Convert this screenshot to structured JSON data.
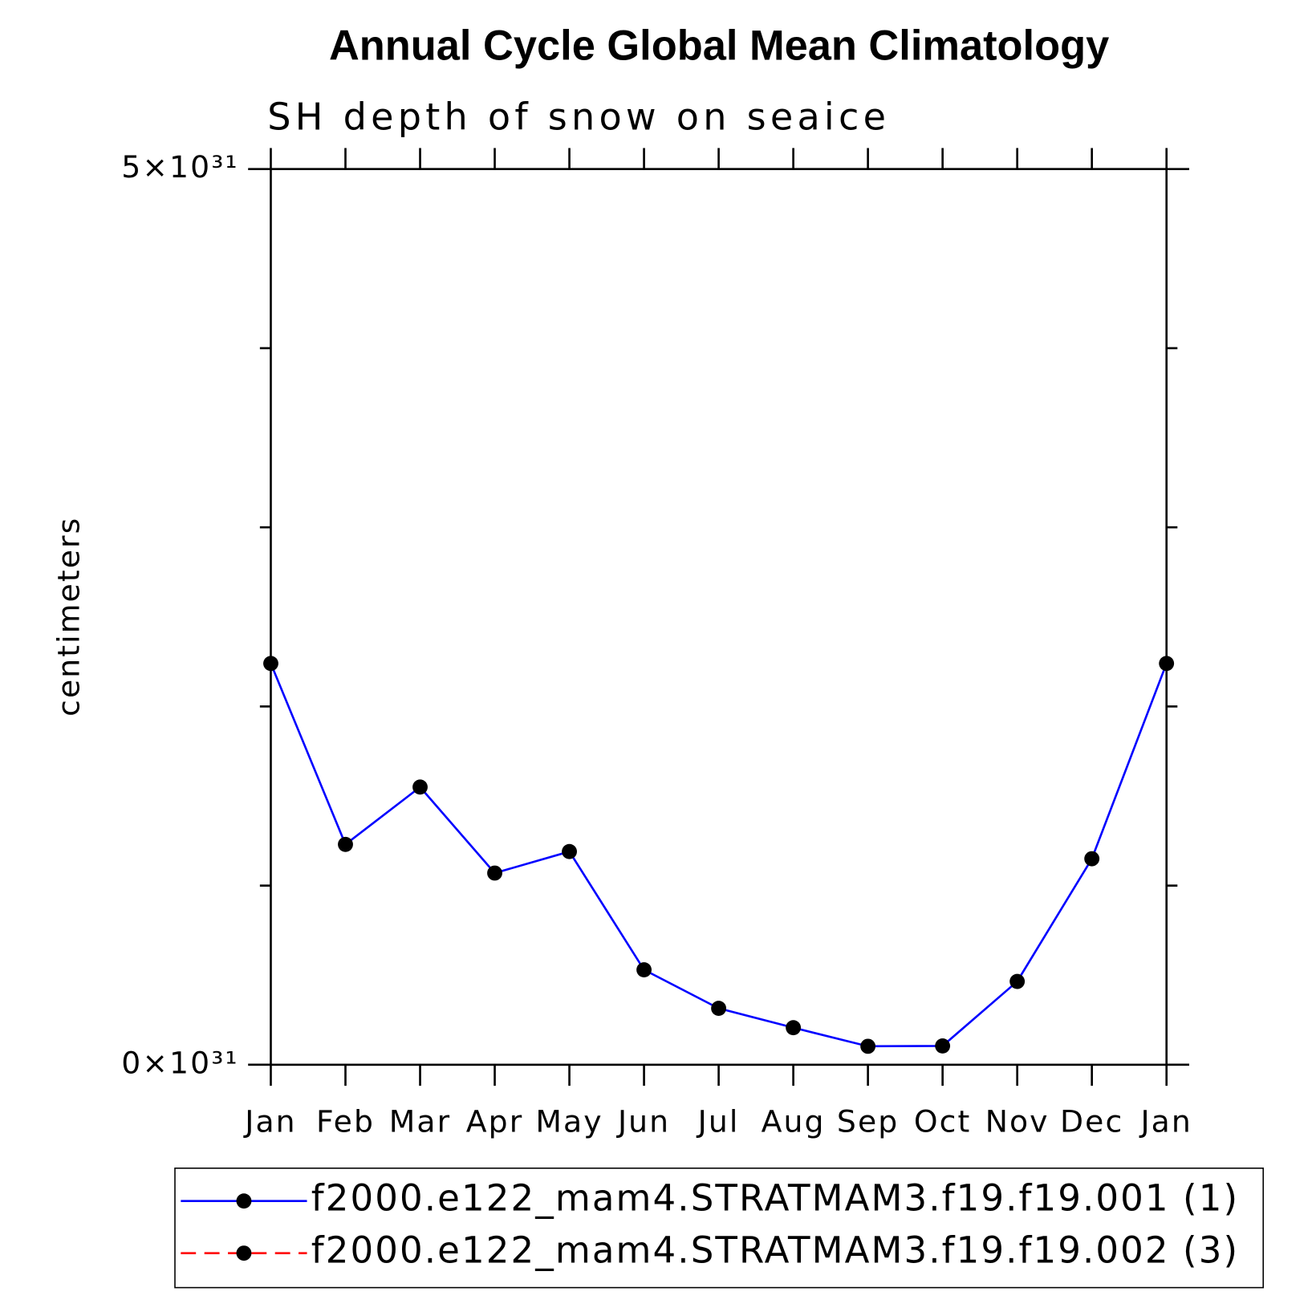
{
  "chart_data": {
    "type": "line",
    "title": "Annual Cycle Global Mean Climatology",
    "subtitle": "SH depth of snow on seaice",
    "y_label": "centimeters",
    "categories": [
      "Jan",
      "Feb",
      "Mar",
      "Apr",
      "May",
      "Jun",
      "Jul",
      "Aug",
      "Sep",
      "Oct",
      "Nov",
      "Dec",
      "Jan"
    ],
    "series": [
      {
        "name": "f2000.e122_mam4.STRATMAM3.f19.f19.001 (1)",
        "color": "#0000ff",
        "dash": false,
        "marker_color": "#000000",
        "values": [
          2.24e+31,
          1.23e+31,
          1.55e+31,
          1.07e+31,
          1.19e+31,
          5.3e+30,
          3.15e+30,
          2.07e+30,
          1.03e+30,
          1.05e+30,
          4.65e+30,
          1.15e+31,
          2.24e+31
        ]
      },
      {
        "name": "f2000.e122_mam4.STRATMAM3.f19.f19.002 (3)",
        "color": "#ff0000",
        "dash": true,
        "marker_color": "#000000",
        "values": [
          null,
          null,
          null,
          null,
          null,
          null,
          null,
          null,
          null,
          null,
          null,
          null,
          null
        ]
      }
    ],
    "ylim": [
      0,
      5e+31
    ],
    "yticks": [
      {
        "value": 0,
        "label": "0×10³¹"
      },
      {
        "value": 5e+31,
        "label": "5×10³¹"
      }
    ],
    "yminor_ticks": [
      1e+31,
      2e+31,
      3e+31,
      4e+31
    ]
  }
}
